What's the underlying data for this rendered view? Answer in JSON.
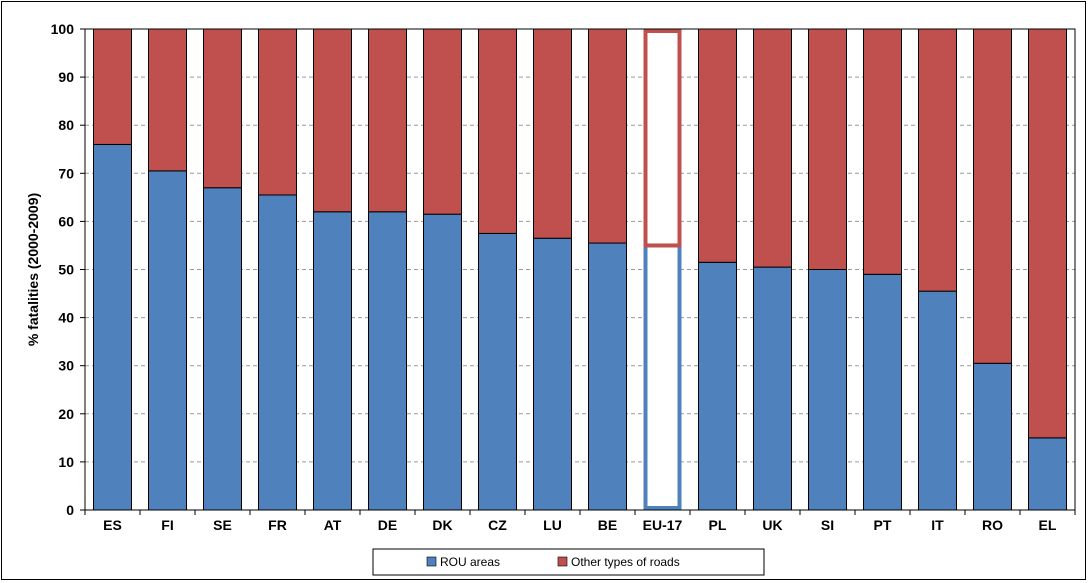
{
  "chart_data": {
    "type": "bar",
    "stacked": true,
    "categories": [
      "ES",
      "FI",
      "SE",
      "FR",
      "AT",
      "DE",
      "DK",
      "CZ",
      "LU",
      "BE",
      "EU-17",
      "PL",
      "UK",
      "SI",
      "PT",
      "IT",
      "RO",
      "EL"
    ],
    "series": [
      {
        "name": "ROU areas",
        "color": "#4F81BD",
        "values": [
          76,
          70.5,
          67,
          65.5,
          62,
          62,
          61.5,
          57.5,
          56.5,
          55.5,
          55,
          51.5,
          50.5,
          50,
          49,
          45.5,
          30.5,
          15
        ]
      },
      {
        "name": "Other types of roads",
        "color": "#C0504D",
        "values": [
          24,
          29.5,
          33,
          34.5,
          38,
          38,
          38.5,
          42.5,
          43.5,
          44.5,
          45,
          48.5,
          49.5,
          50,
          51,
          54.5,
          69.5,
          85
        ]
      }
    ],
    "highlight_category": "EU-17",
    "highlight_style": "outline",
    "title": "",
    "xlabel": "",
    "ylabel": "% fatalities (2000-2009)",
    "ylim": [
      0,
      100
    ],
    "yticks": [
      0,
      10,
      20,
      30,
      40,
      50,
      60,
      70,
      80,
      90,
      100
    ],
    "grid": true,
    "legend": "bottom"
  }
}
